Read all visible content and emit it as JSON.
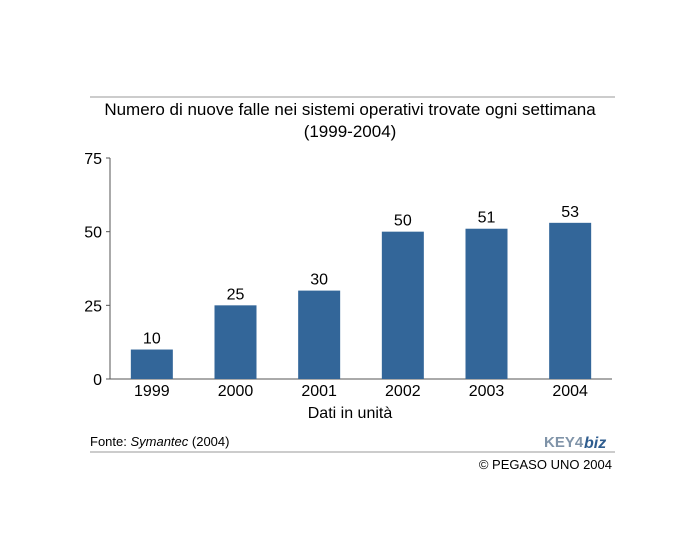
{
  "chart_data": {
    "type": "bar",
    "title": "Numero di nuove falle nei sistemi operativi trovate ogni settimana",
    "subtitle": "(1999-2004)",
    "categories": [
      "1999",
      "2000",
      "2001",
      "2002",
      "2003",
      "2004"
    ],
    "values": [
      10,
      25,
      30,
      50,
      51,
      53
    ],
    "data_labels": [
      "10",
      "25",
      "30",
      "50",
      "51",
      "53"
    ],
    "xlabel": "Dati in unità",
    "ylabel": "",
    "ylim": [
      0,
      75
    ],
    "yticks": [
      "0",
      "25",
      "50",
      "75"
    ],
    "grid": false,
    "bar_color": "#336699"
  },
  "source": {
    "prefix": "Fonte: ",
    "name": "Symantec",
    "year": " (2004)"
  },
  "logo": {
    "part1": "KEY4",
    "part2": "biz"
  },
  "copyright": "© PEGASO UNO 2004",
  "colors": {
    "rule": "#999999",
    "axis": "#555555"
  }
}
